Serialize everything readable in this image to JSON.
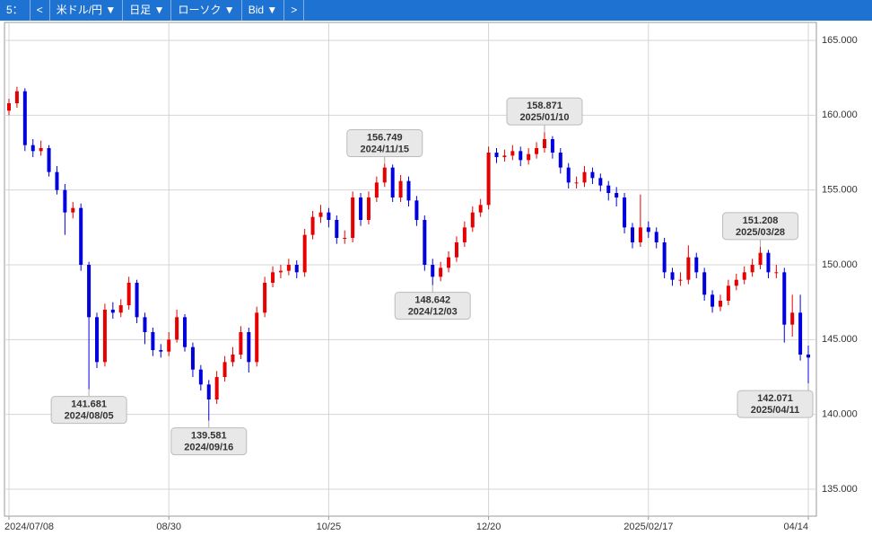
{
  "toolbar": {
    "items": [
      "5：",
      "<",
      "米ドル/円 ▼",
      "日足 ▼",
      "ローソク ▼",
      "Bid ▼",
      ">"
    ]
  },
  "chart_data": {
    "type": "candlestick",
    "categories": [
      "2024/07/08",
      null,
      null,
      null,
      null,
      null,
      null,
      null,
      null,
      null,
      null,
      null,
      null,
      null,
      null,
      null,
      null,
      null,
      null,
      null,
      "08/30",
      null,
      null,
      null,
      null,
      null,
      null,
      null,
      null,
      null,
      null,
      null,
      null,
      null,
      null,
      null,
      null,
      null,
      null,
      null,
      "10/25",
      null,
      null,
      null,
      null,
      null,
      null,
      null,
      null,
      null,
      null,
      null,
      null,
      null,
      null,
      null,
      null,
      null,
      null,
      null,
      "12/20",
      null,
      null,
      null,
      null,
      null,
      null,
      null,
      null,
      null,
      null,
      null,
      null,
      null,
      null,
      null,
      null,
      null,
      null,
      null,
      "2025/02/17",
      null,
      null,
      null,
      null,
      null,
      null,
      null,
      null,
      null,
      null,
      null,
      null,
      null,
      null,
      null,
      null,
      null,
      null,
      null,
      "04/14"
    ],
    "open": [
      160.3,
      160.8,
      161.6,
      158.0,
      157.6,
      157.8,
      156.2,
      155.0,
      153.5,
      153.8,
      150.0,
      146.5,
      143.5,
      147.0,
      146.8,
      147.3,
      148.8,
      146.5,
      145.5,
      144.3,
      144.2,
      145.0,
      146.5,
      144.5,
      143.0,
      142.0,
      141.0,
      142.5,
      143.5,
      144.0,
      145.5,
      143.5,
      146.8,
      148.8,
      149.5,
      149.6,
      150.0,
      149.5,
      152.0,
      153.2,
      153.5,
      153.0,
      151.8,
      151.8,
      154.5,
      153.0,
      154.5,
      155.5,
      156.5,
      154.5,
      155.6,
      154.3,
      153.0,
      150.0,
      149.2,
      149.8,
      150.5,
      151.5,
      152.5,
      153.5,
      154.0,
      157.5,
      157.2,
      157.3,
      157.6,
      157.0,
      157.4,
      157.8,
      158.4,
      157.5,
      156.5,
      155.5,
      155.5,
      156.2,
      155.8,
      155.3,
      154.8,
      154.5,
      152.5,
      151.5,
      152.5,
      152.2,
      151.5,
      149.5,
      149.0,
      149.0,
      150.5,
      149.5,
      148.0,
      147.2,
      147.6,
      148.6,
      149.0,
      149.5,
      150.0,
      150.8,
      149.5,
      149.5,
      146.0,
      146.8,
      144.0
    ],
    "high": [
      161.1,
      161.9,
      161.8,
      158.4,
      158.3,
      158.0,
      156.6,
      155.4,
      154.2,
      154.1,
      150.2,
      146.8,
      147.4,
      147.5,
      147.7,
      149.2,
      149.0,
      146.8,
      145.8,
      144.7,
      145.5,
      147.0,
      146.7,
      144.8,
      143.3,
      142.3,
      142.9,
      143.9,
      144.5,
      145.9,
      145.8,
      147.2,
      149.2,
      149.9,
      150.0,
      150.4,
      150.3,
      152.4,
      153.6,
      154.0,
      153.8,
      153.3,
      152.3,
      154.9,
      154.8,
      154.9,
      155.9,
      156.749,
      156.7,
      156.0,
      155.9,
      154.6,
      153.3,
      150.4,
      150.2,
      150.9,
      151.9,
      152.9,
      153.9,
      154.4,
      157.9,
      157.8,
      157.7,
      158.0,
      157.9,
      157.8,
      158.2,
      158.871,
      158.6,
      157.8,
      156.8,
      155.9,
      156.6,
      156.5,
      156.1,
      155.6,
      155.2,
      154.8,
      152.8,
      154.7,
      152.9,
      152.5,
      151.8,
      149.8,
      149.5,
      151.3,
      150.8,
      149.8,
      148.3,
      148.0,
      149.0,
      149.4,
      149.9,
      150.4,
      151.208,
      151.0,
      150.0,
      149.8,
      148.0,
      148.0,
      144.6
    ],
    "low": [
      160.0,
      160.5,
      157.6,
      157.2,
      157.3,
      155.9,
      154.7,
      152.0,
      153.1,
      149.6,
      141.681,
      143.1,
      143.2,
      146.4,
      146.5,
      147.0,
      146.1,
      144.7,
      143.9,
      143.8,
      143.9,
      144.8,
      144.2,
      142.5,
      141.6,
      139.581,
      140.7,
      142.2,
      143.2,
      143.7,
      142.8,
      143.2,
      146.5,
      148.5,
      149.1,
      149.3,
      149.1,
      149.2,
      151.7,
      152.8,
      152.5,
      151.4,
      151.4,
      151.5,
      152.6,
      152.7,
      154.2,
      155.2,
      154.2,
      154.2,
      153.9,
      152.6,
      149.6,
      148.642,
      148.9,
      149.5,
      150.2,
      151.2,
      152.2,
      153.2,
      153.7,
      156.8,
      156.9,
      157.0,
      156.6,
      156.7,
      157.1,
      157.5,
      157.1,
      156.1,
      155.1,
      155.1,
      155.2,
      155.4,
      154.9,
      154.3,
      153.9,
      152.1,
      151.1,
      151.2,
      151.8,
      151.1,
      149.1,
      148.6,
      148.6,
      148.7,
      149.1,
      147.6,
      146.8,
      146.9,
      147.3,
      148.3,
      148.7,
      149.2,
      149.7,
      149.1,
      149.1,
      144.8,
      145.2,
      143.6,
      142.071
    ],
    "close": [
      160.8,
      161.6,
      158.0,
      157.6,
      157.8,
      156.2,
      155.0,
      153.5,
      153.8,
      150.0,
      146.5,
      143.5,
      147.0,
      146.8,
      147.3,
      148.8,
      146.5,
      145.5,
      144.3,
      144.2,
      145.0,
      146.5,
      144.5,
      143.0,
      142.0,
      141.0,
      142.5,
      143.5,
      144.0,
      145.5,
      143.5,
      146.8,
      148.8,
      149.5,
      149.6,
      150.0,
      149.5,
      152.0,
      153.2,
      153.5,
      153.0,
      151.8,
      151.8,
      154.5,
      153.0,
      154.5,
      155.5,
      156.5,
      154.5,
      155.6,
      154.3,
      153.0,
      150.0,
      149.2,
      149.8,
      150.5,
      151.5,
      152.5,
      153.5,
      154.0,
      157.5,
      157.2,
      157.3,
      157.6,
      157.0,
      157.4,
      157.8,
      158.4,
      157.5,
      156.5,
      155.5,
      155.5,
      156.2,
      155.8,
      155.3,
      154.8,
      154.5,
      152.5,
      151.5,
      152.5,
      152.2,
      151.5,
      149.5,
      149.0,
      149.0,
      150.5,
      149.5,
      148.0,
      147.2,
      147.6,
      148.6,
      149.0,
      149.5,
      150.0,
      150.8,
      149.5,
      149.5,
      146.0,
      146.8,
      144.0,
      143.8
    ],
    "up_color": "#e60000",
    "down_color": "#0000dd",
    "ylim": [
      133.2,
      166.2
    ],
    "yticks": [
      {
        "value": 135,
        "label": "135.000"
      },
      {
        "value": 140,
        "label": "140.000"
      },
      {
        "value": 145,
        "label": "145.000"
      },
      {
        "value": 150,
        "label": "150.000"
      },
      {
        "value": 155,
        "label": "155.000"
      },
      {
        "value": 160,
        "label": "160.000"
      },
      {
        "value": 165,
        "label": "165.000"
      }
    ],
    "grid": true,
    "annotations": [
      {
        "value": 141.681,
        "date": "2024/08/05"
      },
      {
        "value": 139.581,
        "date": "2024/09/16"
      },
      {
        "value": 156.749,
        "date": "2024/11/15"
      },
      {
        "value": 148.642,
        "date": "2024/12/03"
      },
      {
        "value": 158.871,
        "date": "2025/01/10"
      },
      {
        "value": 151.208,
        "date": "2025/03/28"
      },
      {
        "value": 142.071,
        "date": "2025/04/11"
      }
    ]
  }
}
